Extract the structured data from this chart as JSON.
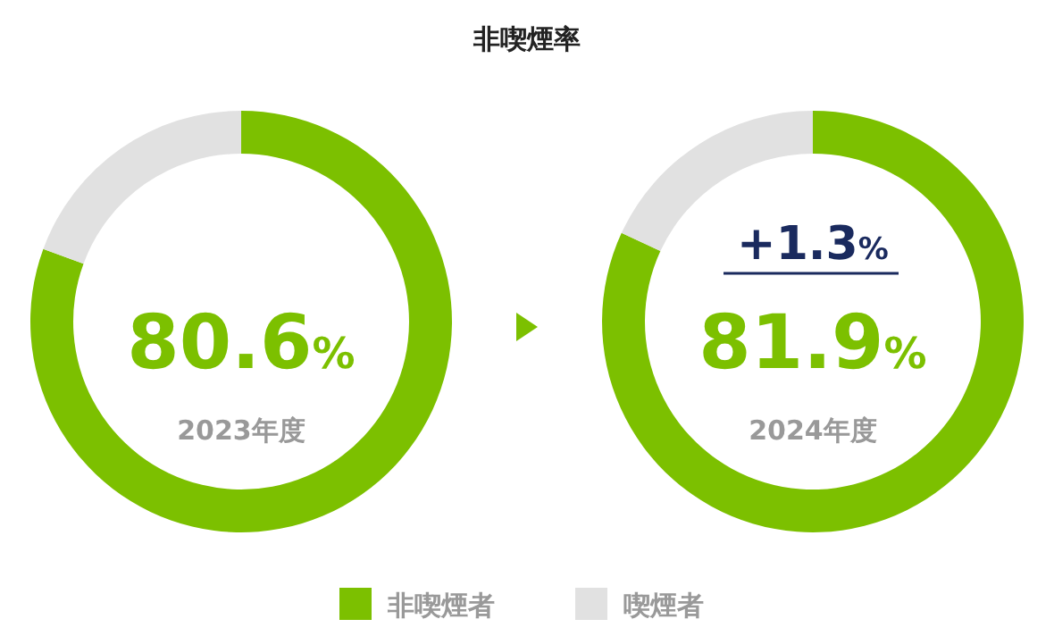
{
  "chart_data": [
    {
      "type": "donut",
      "title": "非喫煙率",
      "categories": [
        null,
        null
      ],
      "values": [
        80.6,
        19.4
      ],
      "colors": [
        "#7cc000",
        "#e1e1e1"
      ],
      "annotations": [
        "80.6%",
        "2023年度"
      ]
    },
    {
      "type": "donut",
      "categories": [
        "非喫煙者",
        "喫煙者"
      ],
      "values": [
        81.9,
        18.1
      ],
      "colors": [
        "#7cc000",
        "#e1e1e1"
      ],
      "legend": "bottom",
      "annotations": [
        "+1.3%",
        "81.9%",
        "2024年度"
      ]
    }
  ]
}
